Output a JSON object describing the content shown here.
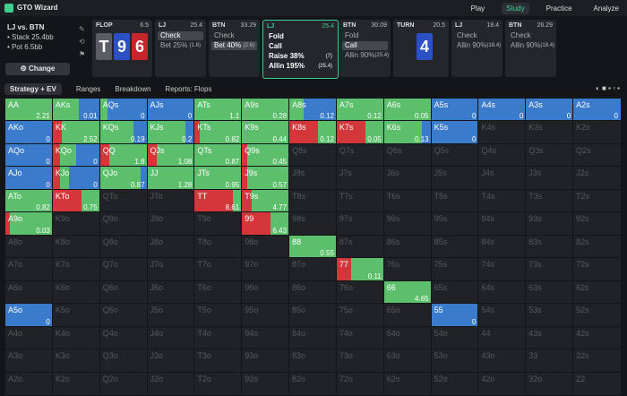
{
  "app": {
    "name": "GTO Wizard",
    "nav": [
      "Play",
      "Study",
      "Practice",
      "Analyze"
    ],
    "active_nav": 1
  },
  "spot": {
    "title": "LJ vs. BTN",
    "stack": "Stack 25.4bb",
    "pot": "Pot 6.5bb",
    "button": "Change"
  },
  "actions": [
    {
      "player": "FLOP",
      "amount": "6.5",
      "cards": [
        {
          "rank": "T",
          "color": "#5a5d63"
        },
        {
          "rank": "9",
          "color": "#2b4fc4"
        },
        {
          "rank": "6",
          "color": "#c4262b"
        }
      ]
    },
    {
      "player": "LJ",
      "amount": "25.4",
      "options": [
        {
          "label": "Check",
          "selected": true
        },
        {
          "label": "Bet 25%",
          "size": "(1.6)"
        }
      ]
    },
    {
      "player": "BTN",
      "amount": "33.29",
      "options": [
        {
          "label": "Check"
        },
        {
          "label": "Bet 40%",
          "size": "(2.6)",
          "selected": true
        }
      ]
    },
    {
      "player": "LJ",
      "amount": "25.4",
      "current": true,
      "options": [
        {
          "label": "Fold"
        },
        {
          "label": "Call"
        },
        {
          "label": "Raise 38%",
          "size": "(7)"
        },
        {
          "label": "Allin 195%",
          "size": "(25.4)"
        }
      ]
    },
    {
      "player": "BTN",
      "amount": "30.09",
      "options": [
        {
          "label": "Fold"
        },
        {
          "label": "Call",
          "selected": true
        },
        {
          "label": "Allin 90%",
          "size": "(25.4)"
        }
      ]
    },
    {
      "player": "TURN",
      "amount": "20.5",
      "cards": [
        {
          "rank": "4",
          "color": "#2b4fc4"
        }
      ]
    },
    {
      "player": "LJ",
      "amount": "18.4",
      "options": [
        {
          "label": "Check"
        },
        {
          "label": "Allin 90%",
          "size": "(18.4)"
        }
      ]
    },
    {
      "player": "BTN",
      "amount": "26.29",
      "options": [
        {
          "label": "Check"
        },
        {
          "label": "Allin 90%",
          "size": "(18.4)"
        }
      ]
    }
  ],
  "toolbar": [
    "Strategy + EV",
    "Ranges",
    "Breakdown",
    "Reports: Flops"
  ],
  "colors": {
    "raise": "#d4373a",
    "call": "#5cbf6b",
    "fold": "#3b7bcc"
  },
  "grid": [
    [
      {
        "hand": "AA",
        "ev": 2.21,
        "raise": 0,
        "call": 100,
        "fold": 0
      },
      {
        "hand": "AKs",
        "ev": 0.01,
        "raise": 0,
        "call": 55,
        "fold": 45
      },
      {
        "hand": "AQs",
        "ev": 0,
        "raise": 0,
        "call": 15,
        "fold": 85
      },
      {
        "hand": "AJs",
        "ev": 0,
        "raise": 0,
        "call": 0,
        "fold": 100
      },
      {
        "hand": "ATs",
        "ev": 1.1,
        "raise": 0,
        "call": 100,
        "fold": 0
      },
      {
        "hand": "A9s",
        "ev": 0.28,
        "raise": 0,
        "call": 100,
        "fold": 0
      },
      {
        "hand": "A8s",
        "ev": 0.12,
        "raise": 0,
        "call": 30,
        "fold": 70
      },
      {
        "hand": "A7s",
        "ev": 0.12,
        "raise": 0,
        "call": 100,
        "fold": 0
      },
      {
        "hand": "A6s",
        "ev": 0.05,
        "raise": 0,
        "call": 100,
        "fold": 0
      },
      {
        "hand": "A5s",
        "ev": 0,
        "raise": 0,
        "call": 0,
        "fold": 100
      },
      {
        "hand": "A4s",
        "ev": 0,
        "raise": 0,
        "call": 0,
        "fold": 100
      },
      {
        "hand": "A3s",
        "ev": 0,
        "raise": 0,
        "call": 0,
        "fold": 100
      },
      {
        "hand": "A2s",
        "ev": 0,
        "raise": 0,
        "call": 0,
        "fold": 100
      }
    ],
    [
      {
        "hand": "AKo",
        "ev": 0,
        "raise": 0,
        "call": 0,
        "fold": 100
      },
      {
        "hand": "KK",
        "ev": 2.52,
        "raise": 20,
        "call": 80,
        "fold": 0
      },
      {
        "hand": "KQs",
        "ev": 0.19,
        "raise": 0,
        "call": 70,
        "fold": 30
      },
      {
        "hand": "KJs",
        "ev": 0.2,
        "raise": 0,
        "call": 80,
        "fold": 20
      },
      {
        "hand": "KTs",
        "ev": 0.82,
        "raise": 10,
        "call": 90,
        "fold": 0
      },
      {
        "hand": "K9s",
        "ev": 0.44,
        "raise": 0,
        "call": 100,
        "fold": 0
      },
      {
        "hand": "K8s",
        "ev": 0.12,
        "raise": 60,
        "call": 40,
        "fold": 0
      },
      {
        "hand": "K7s",
        "ev": 0.05,
        "raise": 60,
        "call": 40,
        "fold": 0
      },
      {
        "hand": "K6s",
        "ev": 0.13,
        "raise": 0,
        "call": 80,
        "fold": 20
      },
      {
        "hand": "K5s",
        "ev": 0,
        "raise": 0,
        "call": 0,
        "fold": 100
      },
      {
        "hand": "K4s"
      },
      {
        "hand": "K3s"
      },
      {
        "hand": "K2s"
      }
    ],
    [
      {
        "hand": "AQo",
        "ev": 0,
        "raise": 0,
        "call": 0,
        "fold": 100
      },
      {
        "hand": "KQo",
        "ev": 0,
        "raise": 15,
        "call": 35,
        "fold": 50
      },
      {
        "hand": "QQ",
        "ev": 1.8,
        "raise": 20,
        "call": 80,
        "fold": 0
      },
      {
        "hand": "QJs",
        "ev": 1.08,
        "raise": 20,
        "call": 80,
        "fold": 0
      },
      {
        "hand": "QTs",
        "ev": 0.87,
        "raise": 0,
        "call": 100,
        "fold": 0
      },
      {
        "hand": "Q9s",
        "ev": 0.45,
        "raise": 10,
        "call": 90,
        "fold": 0
      },
      {
        "hand": "Q8s"
      },
      {
        "hand": "Q7s"
      },
      {
        "hand": "Q6s"
      },
      {
        "hand": "Q5s"
      },
      {
        "hand": "Q4s"
      },
      {
        "hand": "Q3s"
      },
      {
        "hand": "Q2s"
      }
    ],
    [
      {
        "hand": "AJo",
        "ev": 0,
        "raise": 0,
        "call": 0,
        "fold": 100
      },
      {
        "hand": "KJo",
        "ev": 0,
        "raise": 15,
        "call": 20,
        "fold": 65
      },
      {
        "hand": "QJo",
        "ev": 0.87,
        "raise": 0,
        "call": 85,
        "fold": 15
      },
      {
        "hand": "JJ",
        "ev": 1.28,
        "raise": 0,
        "call": 100,
        "fold": 0
      },
      {
        "hand": "JTs",
        "ev": 0.95,
        "raise": 0,
        "call": 100,
        "fold": 0
      },
      {
        "hand": "J9s",
        "ev": 0.57,
        "raise": 10,
        "call": 90,
        "fold": 0
      },
      {
        "hand": "J8s"
      },
      {
        "hand": "J7s"
      },
      {
        "hand": "J6s"
      },
      {
        "hand": "J5s"
      },
      {
        "hand": "J4s"
      },
      {
        "hand": "J3s"
      },
      {
        "hand": "J2s"
      }
    ],
    [
      {
        "hand": "ATo",
        "ev": 0.82,
        "raise": 0,
        "call": 100,
        "fold": 0
      },
      {
        "hand": "KTo",
        "ev": 0.75,
        "raise": 60,
        "call": 40,
        "fold": 0
      },
      {
        "hand": "QTo"
      },
      {
        "hand": "JTo"
      },
      {
        "hand": "TT",
        "ev": 8.61,
        "raise": 80,
        "call": 20,
        "fold": 0
      },
      {
        "hand": "T9s",
        "ev": 4.77,
        "raise": 20,
        "call": 80,
        "fold": 0
      },
      {
        "hand": "T8s"
      },
      {
        "hand": "T7s"
      },
      {
        "hand": "T6s"
      },
      {
        "hand": "T5s"
      },
      {
        "hand": "T4s"
      },
      {
        "hand": "T3s"
      },
      {
        "hand": "T2s"
      }
    ],
    [
      {
        "hand": "A9o",
        "ev": 0.03,
        "raise": 10,
        "call": 90,
        "fold": 0
      },
      {
        "hand": "K9o"
      },
      {
        "hand": "Q9o"
      },
      {
        "hand": "J9o"
      },
      {
        "hand": "T9o"
      },
      {
        "hand": "99",
        "ev": 6.43,
        "raise": 60,
        "call": 40,
        "fold": 0
      },
      {
        "hand": "98s"
      },
      {
        "hand": "97s"
      },
      {
        "hand": "96s"
      },
      {
        "hand": "95s"
      },
      {
        "hand": "94s"
      },
      {
        "hand": "93s"
      },
      {
        "hand": "92s"
      }
    ],
    [
      {
        "hand": "A8o"
      },
      {
        "hand": "K8o"
      },
      {
        "hand": "Q8o"
      },
      {
        "hand": "J8o"
      },
      {
        "hand": "T8o"
      },
      {
        "hand": "98o"
      },
      {
        "hand": "88",
        "ev": 0.55,
        "raise": 0,
        "call": 100,
        "fold": 0
      },
      {
        "hand": "87s"
      },
      {
        "hand": "86s"
      },
      {
        "hand": "85s"
      },
      {
        "hand": "84s"
      },
      {
        "hand": "83s"
      },
      {
        "hand": "82s"
      }
    ],
    [
      {
        "hand": "A7o"
      },
      {
        "hand": "K7o"
      },
      {
        "hand": "Q7o"
      },
      {
        "hand": "J7o"
      },
      {
        "hand": "T7o"
      },
      {
        "hand": "97o"
      },
      {
        "hand": "87o"
      },
      {
        "hand": "77",
        "ev": 0.11,
        "raise": 30,
        "call": 70,
        "fold": 0
      },
      {
        "hand": "76s"
      },
      {
        "hand": "75s"
      },
      {
        "hand": "74s"
      },
      {
        "hand": "73s"
      },
      {
        "hand": "72s"
      }
    ],
    [
      {
        "hand": "A6o"
      },
      {
        "hand": "K6o"
      },
      {
        "hand": "Q6o"
      },
      {
        "hand": "J6o"
      },
      {
        "hand": "T6o"
      },
      {
        "hand": "96o"
      },
      {
        "hand": "86o"
      },
      {
        "hand": "76o"
      },
      {
        "hand": "66",
        "ev": 4.65,
        "raise": 0,
        "call": 100,
        "fold": 0
      },
      {
        "hand": "65s"
      },
      {
        "hand": "64s"
      },
      {
        "hand": "63s"
      },
      {
        "hand": "62s"
      }
    ],
    [
      {
        "hand": "A5o",
        "ev": 0,
        "raise": 0,
        "call": 0,
        "fold": 100
      },
      {
        "hand": "K5o"
      },
      {
        "hand": "Q5o"
      },
      {
        "hand": "J5o"
      },
      {
        "hand": "T5o"
      },
      {
        "hand": "95o"
      },
      {
        "hand": "85o"
      },
      {
        "hand": "75o"
      },
      {
        "hand": "65o"
      },
      {
        "hand": "55",
        "ev": 0,
        "raise": 0,
        "call": 0,
        "fold": 100
      },
      {
        "hand": "54s"
      },
      {
        "hand": "53s"
      },
      {
        "hand": "52s"
      }
    ],
    [
      {
        "hand": "A4o"
      },
      {
        "hand": "K4o"
      },
      {
        "hand": "Q4o"
      },
      {
        "hand": "J4o"
      },
      {
        "hand": "T4o"
      },
      {
        "hand": "94o"
      },
      {
        "hand": "84o"
      },
      {
        "hand": "74o"
      },
      {
        "hand": "64o"
      },
      {
        "hand": "54o"
      },
      {
        "hand": "44"
      },
      {
        "hand": "43s"
      },
      {
        "hand": "42s"
      }
    ],
    [
      {
        "hand": "A3o"
      },
      {
        "hand": "K3o"
      },
      {
        "hand": "Q3o"
      },
      {
        "hand": "J3o"
      },
      {
        "hand": "T3o"
      },
      {
        "hand": "93o"
      },
      {
        "hand": "83o"
      },
      {
        "hand": "73o"
      },
      {
        "hand": "63o"
      },
      {
        "hand": "53o"
      },
      {
        "hand": "43o"
      },
      {
        "hand": "33"
      },
      {
        "hand": "32s"
      }
    ],
    [
      {
        "hand": "A2o"
      },
      {
        "hand": "K2o"
      },
      {
        "hand": "Q2o"
      },
      {
        "hand": "J2o"
      },
      {
        "hand": "T2o"
      },
      {
        "hand": "92o"
      },
      {
        "hand": "82o"
      },
      {
        "hand": "72o"
      },
      {
        "hand": "62o"
      },
      {
        "hand": "52o"
      },
      {
        "hand": "42o"
      },
      {
        "hand": "32o"
      },
      {
        "hand": "22"
      }
    ]
  ]
}
